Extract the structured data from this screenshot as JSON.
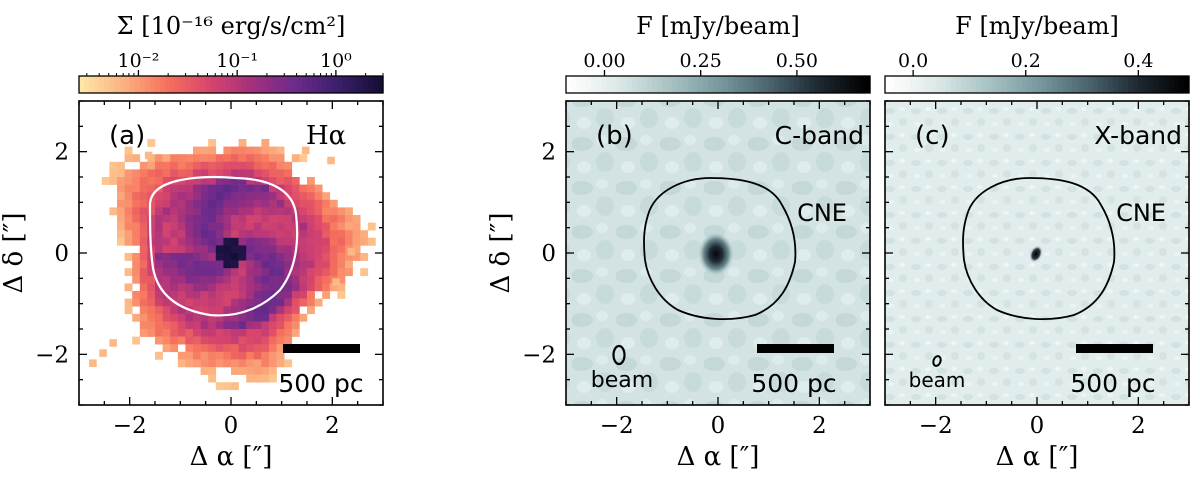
{
  "figure": {
    "panels": [
      {
        "id": "a",
        "panel_label": "(a)",
        "line_label": "Hα",
        "colorbar": {
          "title": "Σ [10⁻¹⁶ erg/s/cm²]",
          "scale": "log",
          "tick_labels": [
            "10⁻²",
            "10⁻¹",
            "10⁰"
          ],
          "tick_values": [
            0.01,
            0.1,
            1
          ],
          "range": [
            0.0025,
            3.0
          ],
          "colormap": "magma_r",
          "colors": [
            "#fde7a5",
            "#fcb080",
            "#f6715c",
            "#d8456c",
            "#a3307e",
            "#6c2b8c",
            "#3b1f6b",
            "#150e37"
          ]
        },
        "scale_bar_label": "500 pc",
        "has_contour": true
      },
      {
        "id": "b",
        "panel_label": "(b)",
        "line_label": "C-band",
        "colorbar": {
          "title": "F [mJy/beam]",
          "scale": "linear",
          "tick_labels": [
            "0.00",
            "0.25",
            "0.50"
          ],
          "tick_values": [
            0.0,
            0.25,
            0.5
          ],
          "range": [
            -0.1,
            0.69
          ],
          "colormap": "bone_r",
          "colors": [
            "#ffffff",
            "#dce8e8",
            "#a9c4c4",
            "#7a9aa0",
            "#4c6670",
            "#1f2a33",
            "#000000"
          ]
        },
        "region_label": "CNE",
        "beam_label": "beam",
        "scale_bar_label": "500 pc",
        "has_contour": true
      },
      {
        "id": "c",
        "panel_label": "(c)",
        "line_label": "X-band",
        "colorbar": {
          "title": "F [mJy/beam]",
          "scale": "linear",
          "tick_labels": [
            "0.0",
            "0.2",
            "0.4"
          ],
          "tick_values": [
            0.0,
            0.2,
            0.4
          ],
          "range": [
            -0.05,
            0.49
          ],
          "colormap": "bone_r",
          "colors": [
            "#ffffff",
            "#dce8e8",
            "#a9c4c4",
            "#7a9aa0",
            "#4c6670",
            "#1f2a33",
            "#000000"
          ]
        },
        "region_label": "CNE",
        "beam_label": "beam",
        "scale_bar_label": "500 pc",
        "has_contour": true
      }
    ],
    "axes": {
      "xlabel": "Δ α [″]",
      "ylabel": "Δ δ [″]",
      "xlim": [
        -3,
        3
      ],
      "ylim": [
        -3,
        3
      ],
      "x_ticks": [
        -2,
        0,
        2
      ],
      "y_ticks": [
        -2,
        0,
        2
      ],
      "x_tick_labels": [
        "−2",
        "0",
        "2"
      ],
      "y_tick_labels": [
        "−2",
        "0",
        "2"
      ]
    }
  },
  "chart_data": {
    "type": "heatmap",
    "title": "",
    "xlabel": "Δ α [″]",
    "ylabel": "Δ δ [″]",
    "xlim": [
      -3,
      3
    ],
    "ylim": [
      -3,
      3
    ],
    "series": [
      {
        "name": "Hα surface brightness",
        "colorbar_title": "Σ [10⁻¹⁶ erg/s/cm²]",
        "peak_position": [
          0,
          0
        ]
      },
      {
        "name": "C-band",
        "colorbar_title": "F [mJy/beam]",
        "peak_position": [
          0,
          0
        ]
      },
      {
        "name": "X-band",
        "colorbar_title": "F [mJy/beam]",
        "peak_position": [
          0,
          0
        ]
      }
    ],
    "annotations": [
      "(a)",
      "Hα",
      "(b)",
      "C-band",
      "CNE",
      "beam",
      "(c)",
      "X-band",
      "CNE",
      "beam",
      "500 pc"
    ]
  }
}
